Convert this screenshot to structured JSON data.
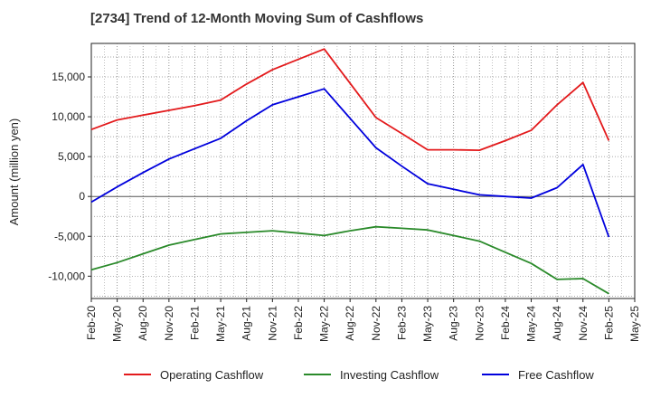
{
  "chart_data": {
    "type": "line",
    "title": "[2734]  Trend of 12-Month Moving Sum of Cashflows",
    "xlabel": "",
    "ylabel": "Amount (million yen)",
    "categories": [
      "Feb-20",
      "May-20",
      "Aug-20",
      "Nov-20",
      "Feb-21",
      "May-21",
      "Aug-21",
      "Nov-21",
      "Feb-22",
      "May-22",
      "Aug-22",
      "Nov-22",
      "Feb-23",
      "May-23",
      "Aug-23",
      "Nov-23",
      "Feb-24",
      "May-24",
      "Aug-24",
      "Nov-24",
      "Feb-25",
      "May-25"
    ],
    "yticks": [
      -10000,
      -5000,
      0,
      5000,
      10000,
      15000
    ],
    "ytick_labels": [
      "-10,000",
      "-5,000",
      "0",
      "5,000",
      "10,000",
      "15,000"
    ],
    "ylim": [
      -12800,
      19200
    ],
    "grid": true,
    "legend_position": "bottom",
    "series": [
      {
        "name": "Operating Cashflow",
        "color": "#e31a1c",
        "values": [
          8400,
          9600,
          10200,
          10800,
          11400,
          12100,
          14100,
          15900,
          17200,
          18500,
          14200,
          9900,
          7900,
          5850,
          5850,
          5800,
          7000,
          8300,
          11500,
          14300,
          7000,
          null
        ]
      },
      {
        "name": "Investing Cashflow",
        "color": "#2a8a2a",
        "values": [
          -9200,
          -8300,
          -7200,
          -6100,
          -5400,
          -4700,
          -4500,
          -4300,
          -4600,
          -4900,
          -4300,
          -3800,
          -4000,
          -4200,
          -4900,
          -5600,
          -7000,
          -8400,
          -10400,
          -10300,
          -12200,
          null
        ]
      },
      {
        "name": "Free Cashflow",
        "color": "#0000dd",
        "values": [
          -700,
          1200,
          3000,
          4700,
          6000,
          7300,
          9500,
          11500,
          12500,
          13500,
          9800,
          6100,
          3800,
          1600,
          900,
          200,
          0,
          -200,
          1100,
          4000,
          -5100,
          null
        ]
      }
    ]
  }
}
